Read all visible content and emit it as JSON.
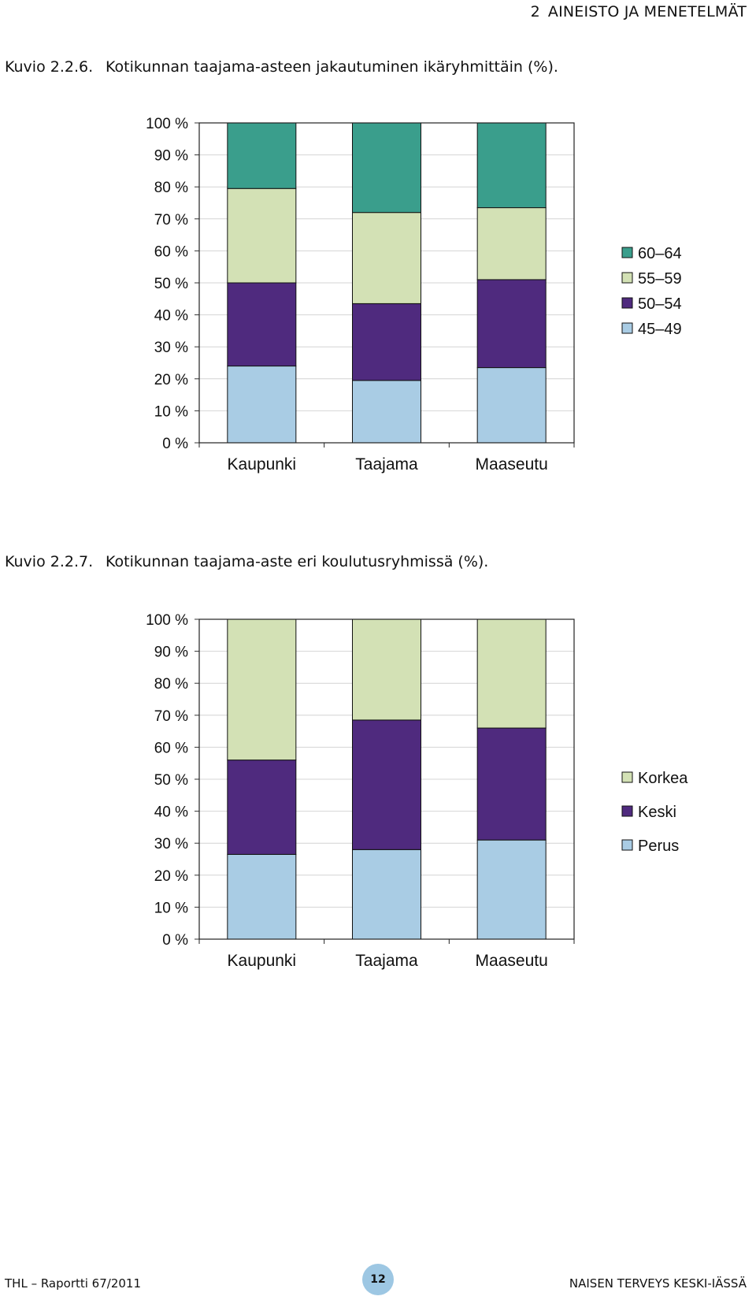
{
  "header": {
    "chapter_number": "2",
    "chapter_title": "AINEISTO JA MENETELMÄT"
  },
  "figures": [
    {
      "label": "Kuvio 2.2.6.",
      "caption": "Kotikunnan taajama-asteen jakautuminen ikäryhmittäin (%)."
    },
    {
      "label": "Kuvio 2.2.7.",
      "caption": "Kotikunnan taajama-aste eri koulutusryhmissä (%)."
    }
  ],
  "chart_data": [
    {
      "type": "bar",
      "stacked": true,
      "categories": [
        "Kaupunki",
        "Taajama",
        "Maaseutu"
      ],
      "ylim": [
        0,
        100
      ],
      "yticks": [
        "0 %",
        "10 %",
        "20 %",
        "30 %",
        "40 %",
        "50 %",
        "60 %",
        "70 %",
        "80 %",
        "90 %",
        "100 %"
      ],
      "grid": true,
      "legend_position": "right",
      "series": [
        {
          "name": "45–49",
          "color": "#a9cce4",
          "values": [
            24,
            19.5,
            23.5
          ]
        },
        {
          "name": "50–54",
          "color": "#4f2a7e",
          "values": [
            26,
            24,
            27.5
          ]
        },
        {
          "name": "55–59",
          "color": "#d3e1b5",
          "values": [
            29.5,
            28.5,
            22.5
          ]
        },
        {
          "name": "60–64",
          "color": "#3a9e8c",
          "values": [
            20.5,
            28,
            26.5
          ]
        }
      ]
    },
    {
      "type": "bar",
      "stacked": true,
      "categories": [
        "Kaupunki",
        "Taajama",
        "Maaseutu"
      ],
      "ylim": [
        0,
        100
      ],
      "yticks": [
        "0 %",
        "10 %",
        "20 %",
        "30 %",
        "40 %",
        "50 %",
        "60 %",
        "70 %",
        "80 %",
        "90 %",
        "100 %"
      ],
      "grid": true,
      "legend_position": "right",
      "series": [
        {
          "name": "Perus",
          "color": "#a9cce4",
          "values": [
            26.5,
            28,
            31
          ]
        },
        {
          "name": "Keski",
          "color": "#4f2a7e",
          "values": [
            29.5,
            40.5,
            35
          ]
        },
        {
          "name": "Korkea",
          "color": "#d3e1b5",
          "values": [
            44,
            31.5,
            34
          ]
        }
      ]
    }
  ],
  "footer": {
    "left": "THL – Raportti 67/2011",
    "page": "12",
    "right": "NAISEN TERVEYS KESKI-IÄSSÄ"
  }
}
